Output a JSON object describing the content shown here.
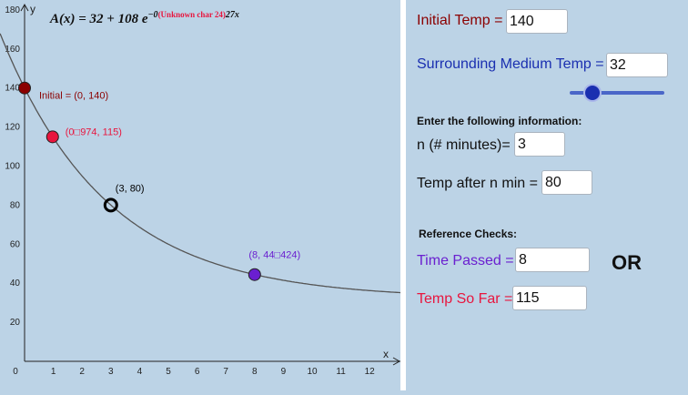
{
  "graph": {
    "formula_lhs": "A(x) = 32 + 108 e",
    "formula_exp_prefix": "−0",
    "formula_exp_error": "(Unknown char 24)",
    "formula_exp_suffix": "27x",
    "axis_x_label": "x",
    "axis_y_label": "y",
    "x_ticks": [
      "0",
      "1",
      "2",
      "3",
      "4",
      "5",
      "6",
      "7",
      "8",
      "9",
      "10",
      "11",
      "12"
    ],
    "y_ticks": [
      "20",
      "40",
      "60",
      "80",
      "100",
      "120",
      "140",
      "160",
      "180"
    ],
    "points": [
      {
        "label": "Initial = (0, 140)",
        "x": 0,
        "y": 140,
        "color": "#8b0000",
        "style": "filled"
      },
      {
        "label": "(0□974, 115)",
        "x": 0.974,
        "y": 115,
        "color": "#e8153e",
        "style": "filled"
      },
      {
        "label": "(3, 80)",
        "x": 3,
        "y": 80,
        "color": "#000000",
        "style": "open"
      },
      {
        "label": "(8, 44□424)",
        "x": 8,
        "y": 44.424,
        "color": "#6a1fd0",
        "style": "filled"
      }
    ]
  },
  "chart_data": {
    "type": "line",
    "xlim": [
      0,
      13.5
    ],
    "ylim": [
      0,
      180
    ],
    "grid": false,
    "curve": {
      "base": 32,
      "amplitude": 108,
      "rate": 0.27
    },
    "series_points": [
      {
        "x": 0,
        "y": 140
      },
      {
        "x": 0.974,
        "y": 115
      },
      {
        "x": 3,
        "y": 80
      },
      {
        "x": 8,
        "y": 44.424
      }
    ]
  },
  "panel": {
    "initial_temp_label": "Initial Temp =",
    "initial_temp_value": "140",
    "medium_temp_label": "Surrounding Medium Temp =",
    "medium_temp_value": "32",
    "slider_value": 0.25,
    "enter_info_label": "Enter the following information:",
    "n_label": "n (# minutes)=",
    "n_value": "3",
    "temp_after_label": "Temp after n min =",
    "temp_after_value": "80",
    "ref_checks_label": "Reference Checks:",
    "time_passed_label": "Time Passed =",
    "time_passed_value": "8",
    "or_label": "OR",
    "temp_so_far_label": "Temp So Far =",
    "temp_so_far_value": "115"
  },
  "colors": {
    "initial_temp": "#8b0000",
    "medium_temp": "#1a2fb0",
    "time_passed": "#6a1fd0",
    "temp_so_far": "#e8153e",
    "curve": "#555555"
  }
}
